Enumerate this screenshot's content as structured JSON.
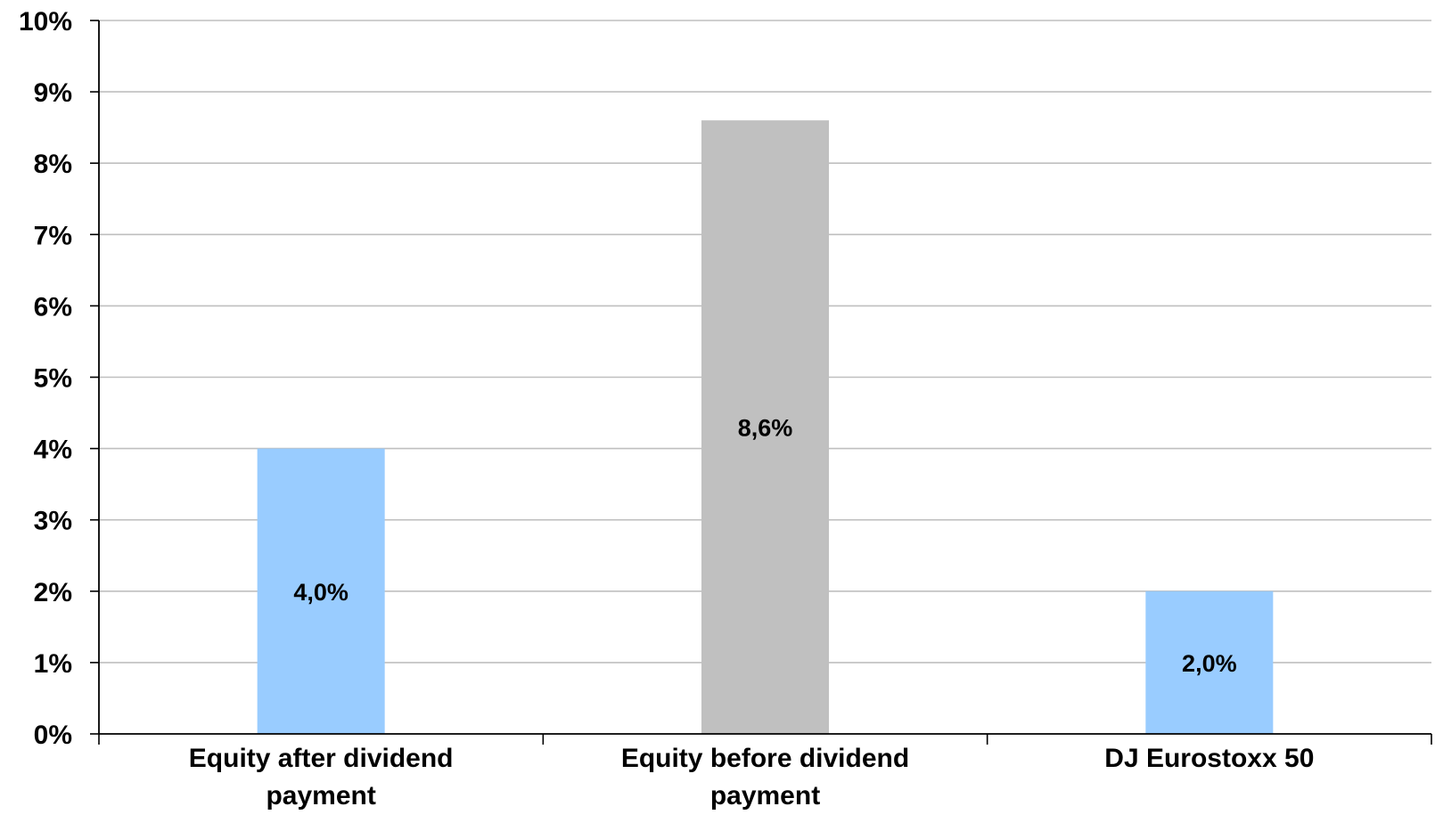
{
  "chart_data": {
    "type": "bar",
    "title": "",
    "xlabel": "",
    "ylabel": "",
    "categories": [
      [
        "Equity after dividend",
        "payment"
      ],
      [
        "Equity before dividend",
        "payment"
      ],
      [
        "DJ Eurostoxx 50"
      ]
    ],
    "values": [
      4.0,
      8.6,
      2.0
    ],
    "data_labels": [
      "4,0%",
      "8,6%",
      "2,0%"
    ],
    "bar_colors": [
      "#99ccff",
      "#c0c0c0",
      "#99ccff"
    ],
    "ylim": [
      0,
      10
    ],
    "y_ticks": [
      0,
      1,
      2,
      3,
      4,
      5,
      6,
      7,
      8,
      9,
      10
    ],
    "y_tick_labels": [
      "0%",
      "1%",
      "2%",
      "3%",
      "4%",
      "5%",
      "6%",
      "7%",
      "8%",
      "9%",
      "10%"
    ],
    "grid": true,
    "legend": "none"
  }
}
